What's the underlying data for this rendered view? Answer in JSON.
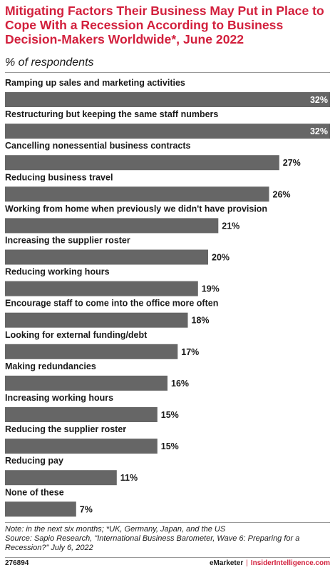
{
  "title": "Mitigating Factors Their Business May Put in Place to Cope With a Recession According to Business Decision-Makers Worldwide*, June 2022",
  "subtitle": "% of respondents",
  "chart_data": {
    "type": "bar",
    "orientation": "horizontal",
    "categories": [
      "Ramping up sales and marketing activities",
      "Restructuring but keeping the same staff numbers",
      "Cancelling nonessential business contracts",
      "Reducing business travel",
      "Working from home when previously we didn't have provision",
      "Increasing the supplier roster",
      "Reducing working hours",
      "Encourage staff to come into the office more often",
      "Looking for external funding/debt",
      "Making redundancies",
      "Increasing working hours",
      "Reducing the supplier roster",
      "Reducing pay",
      "None of these"
    ],
    "values": [
      32,
      32,
      27,
      26,
      21,
      20,
      19,
      18,
      17,
      16,
      15,
      15,
      11,
      7
    ],
    "value_labels": [
      "32%",
      "32%",
      "27%",
      "26%",
      "21%",
      "20%",
      "19%",
      "18%",
      "17%",
      "16%",
      "15%",
      "15%",
      "11%",
      "7%"
    ],
    "bar_color": "#666666",
    "xlim": [
      0,
      32
    ],
    "grid": false,
    "legend": "none"
  },
  "note": {
    "line1": "Note: in the next six months; *UK, Germany, Japan, and the US",
    "line2": "Source: Sapio Research, \"International Business Barometer, Wave 6: Preparing for a",
    "line3": "Recession?\" July 6, 2022"
  },
  "footer": {
    "id": "276894",
    "brand1": "eMarketer",
    "separator": "|",
    "brand2": "InsiderIntelligence.com"
  }
}
